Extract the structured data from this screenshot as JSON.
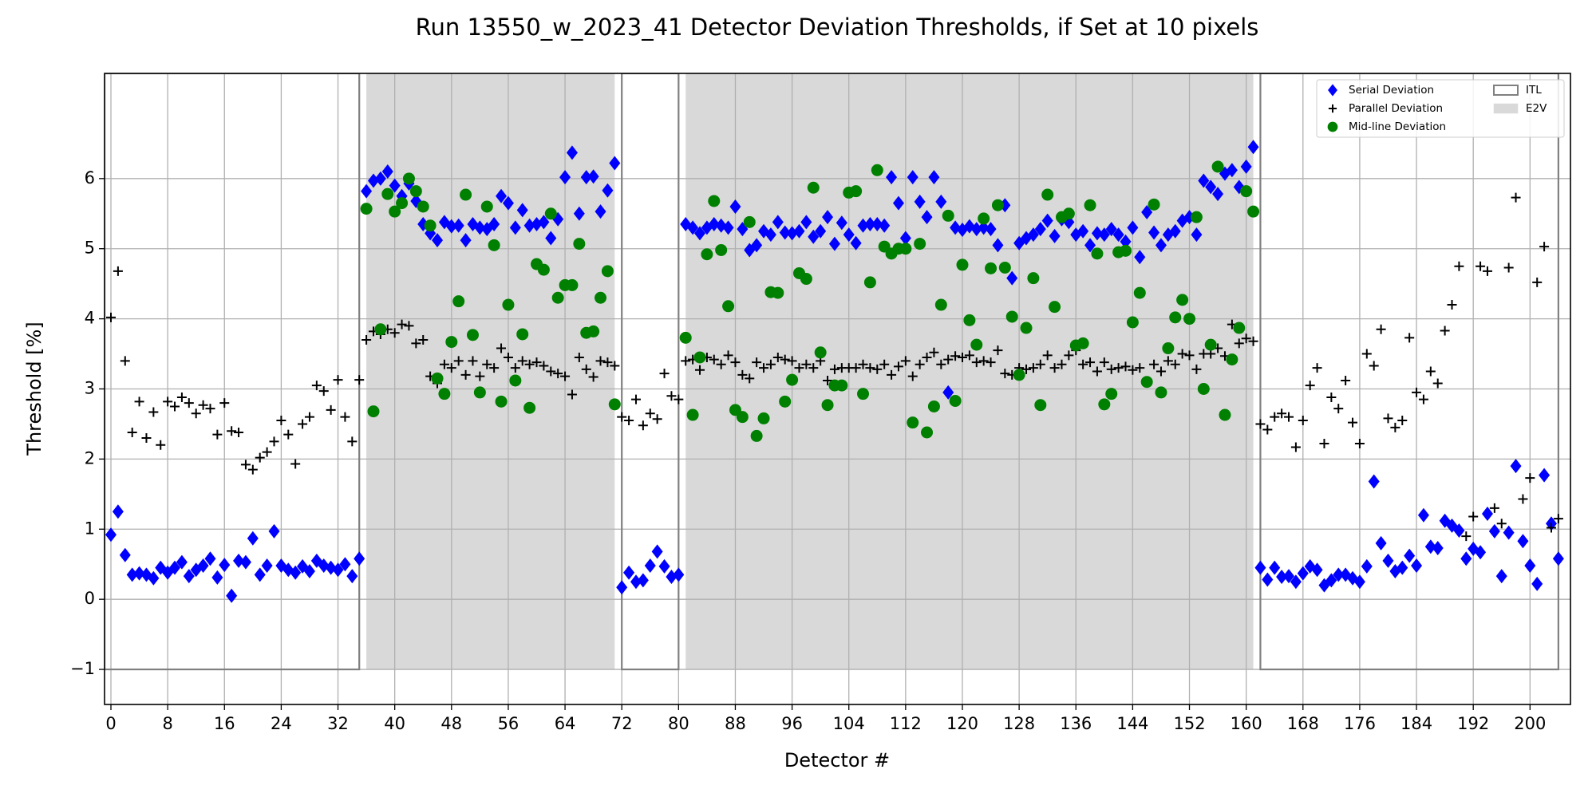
{
  "chart_data": {
    "type": "scatter",
    "title": "Run 13550_w_2023_41 Detector Deviation Thresholds, if Set at 10 pixels",
    "xlabel": "Detector #",
    "ylabel": "Threshold [%]",
    "xlim": [
      -0.9,
      205.7
    ],
    "ylim": [
      -1.5,
      7.5
    ],
    "xticks": [
      0,
      8,
      16,
      24,
      32,
      40,
      48,
      56,
      64,
      72,
      80,
      88,
      96,
      104,
      112,
      120,
      128,
      136,
      144,
      152,
      160,
      168,
      176,
      184,
      192,
      200
    ],
    "yticks": [
      {
        "value": -1,
        "label": "−1"
      },
      0,
      1,
      2,
      3,
      4,
      5,
      6
    ],
    "grid": true,
    "legend": "upper right",
    "regions": [
      {
        "name": "ITL",
        "style": "outline",
        "color": "#808080",
        "y": [
          -1,
          7.5
        ],
        "spans": [
          [
            -0.9,
            35
          ],
          [
            72,
            80
          ],
          [
            162,
            204
          ]
        ]
      },
      {
        "name": "E2V",
        "style": "shaded",
        "color": "#d9d9d9",
        "y": [
          -1,
          7.5
        ],
        "spans": [
          [
            36,
            71
          ],
          [
            81,
            161
          ]
        ]
      }
    ],
    "x": [
      0,
      1,
      2,
      3,
      4,
      5,
      6,
      7,
      8,
      9,
      10,
      11,
      12,
      13,
      14,
      15,
      16,
      17,
      18,
      19,
      20,
      21,
      22,
      23,
      24,
      25,
      26,
      27,
      28,
      29,
      30,
      31,
      32,
      33,
      34,
      35,
      36,
      37,
      38,
      39,
      40,
      41,
      42,
      43,
      44,
      45,
      46,
      47,
      48,
      49,
      50,
      51,
      52,
      53,
      54,
      55,
      56,
      57,
      58,
      59,
      60,
      61,
      62,
      63,
      64,
      65,
      66,
      67,
      68,
      69,
      70,
      71,
      72,
      73,
      74,
      75,
      76,
      77,
      78,
      79,
      80,
      81,
      82,
      83,
      84,
      85,
      86,
      87,
      88,
      89,
      90,
      91,
      92,
      93,
      94,
      95,
      96,
      97,
      98,
      99,
      100,
      101,
      102,
      103,
      104,
      105,
      106,
      107,
      108,
      109,
      110,
      111,
      112,
      113,
      114,
      115,
      116,
      117,
      118,
      119,
      120,
      121,
      122,
      123,
      124,
      125,
      126,
      127,
      128,
      129,
      130,
      131,
      132,
      133,
      134,
      135,
      136,
      137,
      138,
      139,
      140,
      141,
      142,
      143,
      144,
      145,
      146,
      147,
      148,
      149,
      150,
      151,
      152,
      153,
      154,
      155,
      156,
      157,
      158,
      159,
      160,
      161,
      162,
      163,
      164,
      165,
      166,
      167,
      168,
      169,
      170,
      171,
      172,
      173,
      174,
      175,
      176,
      177,
      178,
      179,
      180,
      181,
      182,
      183,
      184,
      185,
      186,
      187,
      188,
      189,
      190,
      191,
      192,
      193,
      194,
      195,
      196,
      197,
      198,
      199,
      200,
      201,
      202,
      203,
      204
    ],
    "series": [
      {
        "name": "Serial Deviation",
        "marker": "diamond",
        "color": "#0000ff",
        "values": [
          0.92,
          1.25,
          0.63,
          0.35,
          0.37,
          0.35,
          0.3,
          0.45,
          0.38,
          0.45,
          0.53,
          0.33,
          0.42,
          0.48,
          0.58,
          0.31,
          0.49,
          0.05,
          0.55,
          0.53,
          0.87,
          0.35,
          0.48,
          0.97,
          0.48,
          0.42,
          0.38,
          0.47,
          0.4,
          0.55,
          0.48,
          0.45,
          0.42,
          0.5,
          0.33,
          0.58,
          5.82,
          5.97,
          6.0,
          6.1,
          5.9,
          5.75,
          5.93,
          5.68,
          5.35,
          5.22,
          5.12,
          5.38,
          5.32,
          5.33,
          5.12,
          5.35,
          5.3,
          5.28,
          5.35,
          5.75,
          5.65,
          5.3,
          5.55,
          5.33,
          5.35,
          5.38,
          5.15,
          5.42,
          6.02,
          6.37,
          5.5,
          6.02,
          6.03,
          5.53,
          5.83,
          6.22,
          0.17,
          0.38,
          0.25,
          0.27,
          0.48,
          0.68,
          0.47,
          0.32,
          0.35,
          5.35,
          5.3,
          5.22,
          5.3,
          5.35,
          5.33,
          5.3,
          5.6,
          5.28,
          4.98,
          5.05,
          5.25,
          5.2,
          5.38,
          5.23,
          5.22,
          5.25,
          5.38,
          5.17,
          5.25,
          5.45,
          5.07,
          5.37,
          5.2,
          5.08,
          5.33,
          5.35,
          5.35,
          5.33,
          6.02,
          5.65,
          5.15,
          6.02,
          5.67,
          5.45,
          6.02,
          5.67,
          2.95,
          5.3,
          5.27,
          5.32,
          5.28,
          5.3,
          5.28,
          5.05,
          5.62,
          4.58,
          5.08,
          5.15,
          5.2,
          5.28,
          5.4,
          5.18,
          5.42,
          5.38,
          5.2,
          5.25,
          5.05,
          5.22,
          5.2,
          5.28,
          5.2,
          5.1,
          5.3,
          4.88,
          5.52,
          5.23,
          5.05,
          5.2,
          5.25,
          5.4,
          5.45,
          5.2,
          5.97,
          5.88,
          5.78,
          6.07,
          6.12,
          5.88,
          6.17,
          6.45,
          0.45,
          0.28,
          0.45,
          0.32,
          0.33,
          0.25,
          0.37,
          0.47,
          0.42,
          0.2,
          0.27,
          0.35,
          0.35,
          0.3,
          0.25,
          0.47,
          1.68,
          0.8,
          0.55,
          0.4,
          0.45,
          0.62,
          0.48,
          1.2,
          0.75,
          0.73,
          1.12,
          1.05,
          0.98,
          0.58,
          0.72,
          0.67,
          1.22,
          0.97,
          0.33,
          0.95,
          1.9,
          0.83,
          0.48,
          0.22,
          1.77,
          1.08,
          0.58
        ]
      },
      {
        "name": "Parallel Deviation",
        "marker": "plus",
        "color": "#000000",
        "values": [
          4.02,
          4.68,
          3.4,
          2.38,
          2.82,
          2.3,
          2.67,
          2.2,
          2.82,
          2.75,
          2.88,
          2.8,
          2.65,
          2.77,
          2.72,
          2.35,
          2.8,
          2.4,
          2.38,
          1.92,
          1.85,
          2.02,
          2.1,
          2.25,
          2.55,
          2.35,
          1.93,
          2.5,
          2.6,
          3.05,
          2.97,
          2.7,
          3.13,
          2.6,
          2.25,
          3.13,
          3.7,
          3.82,
          3.78,
          3.85,
          3.8,
          3.92,
          3.9,
          3.65,
          3.7,
          3.18,
          3.08,
          3.35,
          3.3,
          3.4,
          3.2,
          3.4,
          3.18,
          3.35,
          3.3,
          3.58,
          3.45,
          3.3,
          3.4,
          3.35,
          3.38,
          3.33,
          3.25,
          3.22,
          3.18,
          2.92,
          3.45,
          3.28,
          3.17,
          3.4,
          3.38,
          3.33,
          2.6,
          2.55,
          2.85,
          2.48,
          2.65,
          2.57,
          3.22,
          2.9,
          2.85,
          3.4,
          3.42,
          3.27,
          3.45,
          3.42,
          3.35,
          3.48,
          3.38,
          3.2,
          3.15,
          3.38,
          3.3,
          3.35,
          3.45,
          3.42,
          3.4,
          3.3,
          3.35,
          3.3,
          3.4,
          3.12,
          3.28,
          3.3,
          3.3,
          3.3,
          3.35,
          3.3,
          3.28,
          3.35,
          3.2,
          3.32,
          3.4,
          3.18,
          3.35,
          3.45,
          3.52,
          3.35,
          3.42,
          3.47,
          3.45,
          3.48,
          3.38,
          3.4,
          3.38,
          3.55,
          3.22,
          3.2,
          3.3,
          3.28,
          3.3,
          3.35,
          3.48,
          3.3,
          3.35,
          3.48,
          3.55,
          3.35,
          3.38,
          3.25,
          3.38,
          3.28,
          3.3,
          3.32,
          3.27,
          3.3,
          3.1,
          3.35,
          3.25,
          3.4,
          3.35,
          3.5,
          3.48,
          3.28,
          3.5,
          3.5,
          3.58,
          3.47,
          3.92,
          3.65,
          3.72,
          3.68,
          2.5,
          2.42,
          2.6,
          2.65,
          2.6,
          2.17,
          2.55,
          3.05,
          3.3,
          2.22,
          2.88,
          2.72,
          3.12,
          2.52,
          2.22,
          3.5,
          3.33,
          3.85,
          2.58,
          2.45,
          2.55,
          3.73,
          2.95,
          2.85,
          3.25,
          3.08,
          3.83,
          4.2,
          4.75,
          0.9,
          1.18,
          4.75,
          4.68,
          1.3,
          1.08,
          4.73,
          5.73,
          1.43,
          1.73,
          4.52,
          5.03,
          1.02,
          1.15
        ]
      },
      {
        "name": "Mid-line Deviation",
        "marker": "circle",
        "color": "#008000",
        "values": [
          null,
          null,
          null,
          null,
          null,
          null,
          null,
          null,
          null,
          null,
          null,
          null,
          null,
          null,
          null,
          null,
          null,
          null,
          null,
          null,
          null,
          null,
          null,
          null,
          null,
          null,
          null,
          null,
          null,
          null,
          null,
          null,
          null,
          null,
          null,
          null,
          5.57,
          2.68,
          3.85,
          5.78,
          5.53,
          5.65,
          6.0,
          5.82,
          5.6,
          5.33,
          3.15,
          2.93,
          3.67,
          4.25,
          5.77,
          3.77,
          2.95,
          5.6,
          5.05,
          2.82,
          4.2,
          3.12,
          3.78,
          2.73,
          4.78,
          4.7,
          5.5,
          4.3,
          4.48,
          4.48,
          5.07,
          3.8,
          3.82,
          4.3,
          4.68,
          2.78,
          null,
          null,
          null,
          null,
          null,
          null,
          null,
          null,
          null,
          3.73,
          2.63,
          3.45,
          4.92,
          5.68,
          4.98,
          4.18,
          2.7,
          2.6,
          5.38,
          2.33,
          2.58,
          4.38,
          4.37,
          2.82,
          3.13,
          4.65,
          4.57,
          5.87,
          3.52,
          2.77,
          3.05,
          3.05,
          5.8,
          5.82,
          2.93,
          4.52,
          6.12,
          5.03,
          4.93,
          5.0,
          5.0,
          2.52,
          5.07,
          2.38,
          2.75,
          4.2,
          5.47,
          2.83,
          4.77,
          3.98,
          3.63,
          5.43,
          4.72,
          5.62,
          4.73,
          4.03,
          3.2,
          3.87,
          4.58,
          2.77,
          5.77,
          4.17,
          5.45,
          5.5,
          3.62,
          3.65,
          5.62,
          4.93,
          2.78,
          2.93,
          4.95,
          4.97,
          3.95,
          4.37,
          3.1,
          5.63,
          2.95,
          3.58,
          4.02,
          4.27,
          4.0,
          5.45,
          3.0,
          3.63,
          6.17,
          2.63,
          3.42,
          3.87,
          5.82,
          5.53,
          null,
          null,
          null,
          null,
          null,
          null,
          null,
          null,
          null,
          null,
          null,
          null,
          null,
          null,
          null,
          null,
          null,
          null,
          null,
          null,
          null,
          null,
          null,
          null,
          null,
          null,
          null,
          null,
          null,
          null,
          null,
          null,
          null,
          null,
          null,
          null,
          null,
          null,
          null,
          null,
          null,
          null,
          null
        ]
      }
    ]
  }
}
